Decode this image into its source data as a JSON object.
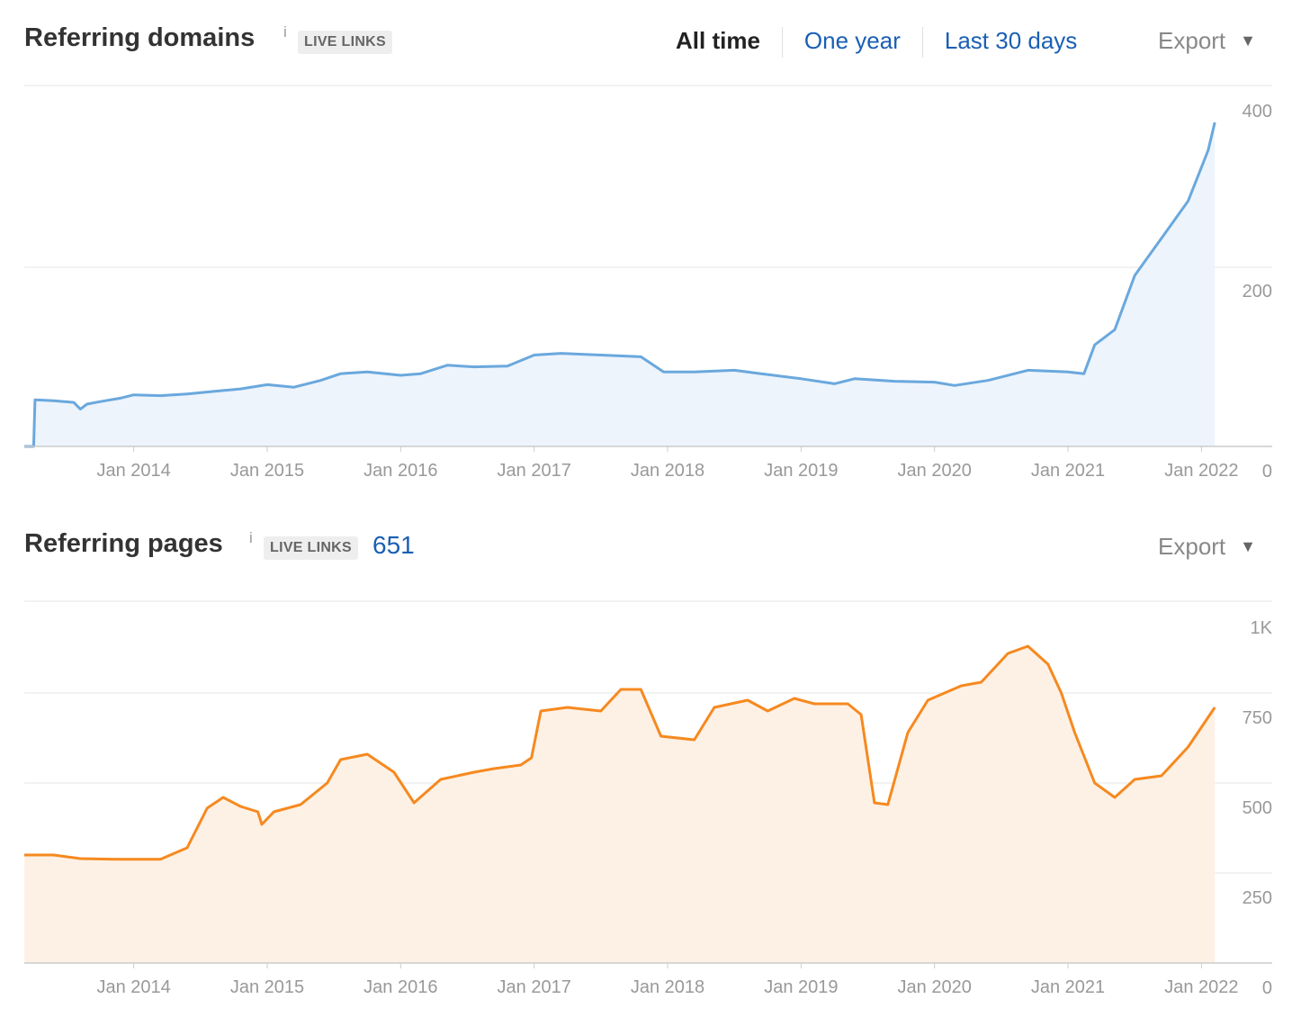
{
  "range_options": [
    "All time",
    "One year",
    "Last 30 days"
  ],
  "active_range": "All time",
  "export_label": "Export",
  "domains": {
    "title": "Referring domains",
    "info": "i",
    "badge": "LIVE LINKS"
  },
  "pages": {
    "title": "Referring pages",
    "info": "i",
    "badge": "LIVE LINKS",
    "count": "651"
  },
  "colors": {
    "domains_line": "#6aa8dd",
    "domains_fill": "#edf4fc",
    "pages_line": "#f6891f",
    "pages_fill": "#fdf1e6",
    "grid": "#e4e4e4",
    "tick": "#999999"
  },
  "chart_data": [
    {
      "type": "area",
      "title": "Referring domains",
      "x_tick_labels": [
        "Jan 2014",
        "Jan 2015",
        "Jan 2016",
        "Jan 2017",
        "Jan 2018",
        "Jan 2019",
        "Jan 2020",
        "Jan 2021",
        "Jan 2022"
      ],
      "y_tick_labels": [
        "400",
        "200",
        "0"
      ],
      "ylim": [
        0,
        400
      ],
      "xlim": [
        2013.18,
        2022.53
      ],
      "grid": true,
      "series": [
        {
          "name": "Referring domains",
          "x": [
            2013.18,
            2013.25,
            2013.26,
            2013.4,
            2013.55,
            2013.6,
            2013.65,
            2013.75,
            2013.9,
            2014.0,
            2014.2,
            2014.4,
            2014.6,
            2014.8,
            2015.0,
            2015.2,
            2015.4,
            2015.55,
            2015.75,
            2016.0,
            2016.15,
            2016.35,
            2016.55,
            2016.8,
            2017.0,
            2017.2,
            2017.5,
            2017.8,
            2017.97,
            2018.2,
            2018.5,
            2018.7,
            2019.0,
            2019.25,
            2019.4,
            2019.7,
            2020.0,
            2020.15,
            2020.4,
            2020.7,
            2021.0,
            2021.12,
            2021.2,
            2021.35,
            2021.5,
            2021.7,
            2021.9,
            2022.05,
            2022.1
          ],
          "values": [
            0,
            0,
            55,
            54,
            52,
            44,
            50,
            53,
            57,
            61,
            60,
            62,
            65,
            68,
            73,
            70,
            78,
            86,
            88,
            84,
            86,
            96,
            94,
            95,
            108,
            110,
            108,
            106,
            88,
            88,
            90,
            86,
            80,
            74,
            80,
            77,
            76,
            72,
            78,
            90,
            88,
            86,
            120,
            138,
            202,
            246,
            290,
            350,
            383
          ]
        }
      ]
    },
    {
      "type": "area",
      "title": "Referring pages",
      "x_tick_labels": [
        "Jan 2014",
        "Jan 2015",
        "Jan 2016",
        "Jan 2017",
        "Jan 2018",
        "Jan 2019",
        "Jan 2020",
        "Jan 2021",
        "Jan 2022"
      ],
      "y_tick_labels": [
        "1K",
        "750",
        "500",
        "250",
        "0"
      ],
      "ylim": [
        0,
        1000
      ],
      "xlim": [
        2013.18,
        2022.53
      ],
      "grid": true,
      "series": [
        {
          "name": "Referring pages",
          "x": [
            2013.18,
            2013.4,
            2013.6,
            2013.9,
            2014.2,
            2014.4,
            2014.55,
            2014.67,
            2014.8,
            2014.93,
            2014.96,
            2015.05,
            2015.25,
            2015.45,
            2015.55,
            2015.75,
            2015.95,
            2016.1,
            2016.3,
            2016.55,
            2016.7,
            2016.9,
            2016.98,
            2017.05,
            2017.25,
            2017.5,
            2017.65,
            2017.8,
            2017.95,
            2018.2,
            2018.35,
            2018.6,
            2018.75,
            2018.95,
            2019.1,
            2019.35,
            2019.45,
            2019.55,
            2019.65,
            2019.8,
            2019.95,
            2020.2,
            2020.35,
            2020.55,
            2020.7,
            2020.85,
            2020.95,
            2021.05,
            2021.2,
            2021.35,
            2021.5,
            2021.7,
            2021.9,
            2022.1
          ],
          "values": [
            300,
            300,
            290,
            288,
            288,
            320,
            430,
            460,
            435,
            420,
            385,
            420,
            440,
            500,
            565,
            580,
            530,
            445,
            510,
            530,
            540,
            550,
            570,
            700,
            710,
            700,
            760,
            760,
            630,
            620,
            710,
            730,
            700,
            735,
            720,
            720,
            690,
            445,
            440,
            640,
            730,
            770,
            780,
            860,
            880,
            830,
            750,
            640,
            500,
            460,
            510,
            520,
            600,
            710
          ]
        }
      ]
    }
  ]
}
